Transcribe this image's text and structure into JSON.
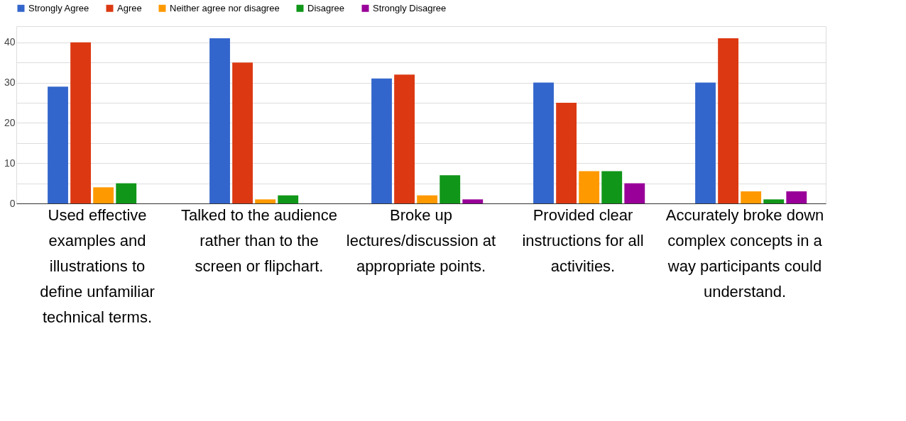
{
  "chart_data": {
    "type": "bar",
    "categories": [
      "Used effective examples and illustrations to define unfamiliar technical terms.",
      "Talked to the audience rather than to the screen or flipchart.",
      "Broke up lectures/discussion at appropriate points.",
      "Provided clear instructions for all activities.",
      "Accurately broke down complex concepts in a way participants could understand."
    ],
    "series": [
      {
        "name": "Strongly Agree",
        "color": "#3366cc",
        "values": [
          29,
          41,
          31,
          30,
          30
        ]
      },
      {
        "name": "Agree",
        "color": "#dc3912",
        "values": [
          40,
          35,
          32,
          25,
          41
        ]
      },
      {
        "name": "Neither agree nor disagree",
        "color": "#ff9900",
        "values": [
          4,
          1,
          2,
          8,
          3
        ]
      },
      {
        "name": "Disagree",
        "color": "#109618",
        "values": [
          5,
          2,
          7,
          8,
          1
        ]
      },
      {
        "name": "Strongly Disagree",
        "color": "#990099",
        "values": [
          0,
          0,
          1,
          5,
          3
        ]
      }
    ],
    "ylim": [
      0,
      44
    ],
    "yticks": [
      0,
      {
        "value": 5,
        "label": null
      },
      10,
      {
        "value": 15,
        "label": null
      },
      20,
      {
        "value": 25,
        "label": null
      },
      30,
      {
        "value": 35,
        "label": null
      },
      40
    ],
    "grid": "y",
    "legend": "top"
  }
}
